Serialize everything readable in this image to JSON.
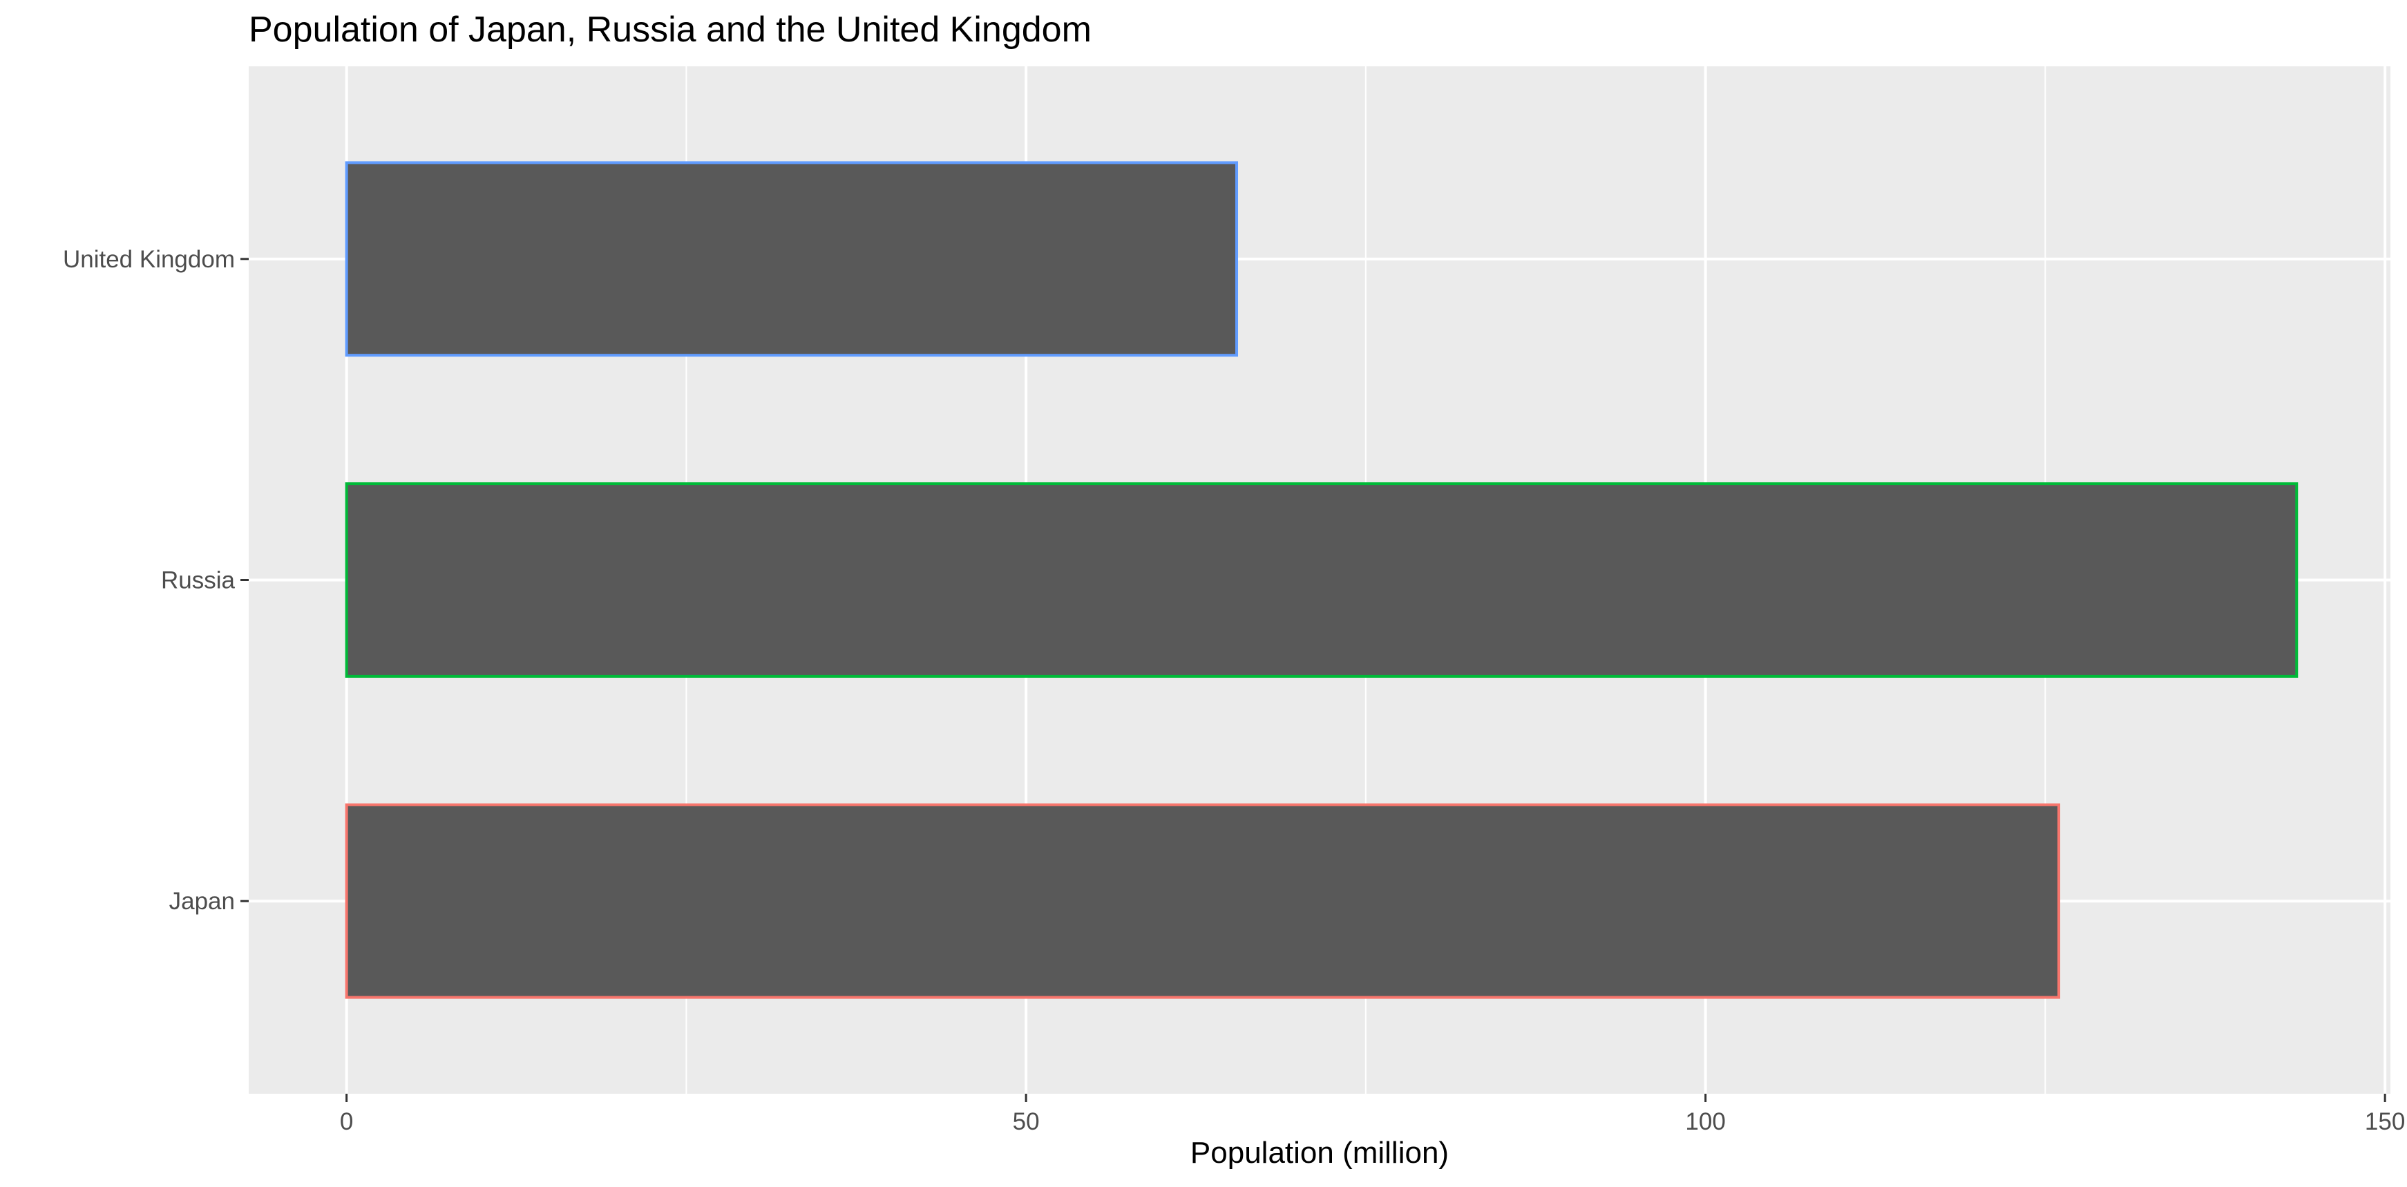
{
  "chart_data": {
    "type": "bar",
    "orientation": "horizontal",
    "title": "Population of Japan, Russia and the United Kingdom",
    "xlabel": "Population (million)",
    "ylabel": "",
    "categories": [
      "Japan",
      "Russia",
      "United Kingdom"
    ],
    "values": [
      126,
      143.5,
      65.5
    ],
    "bar_outline_colors": [
      "#F8766D",
      "#00BA38",
      "#619CFF"
    ],
    "bar_fill_color": "#595959",
    "panel_background": "#EBEBEB",
    "grid_color": "#FFFFFF",
    "xlim": [
      -7.2,
      150.4
    ],
    "x_ticks": [
      0,
      50,
      100,
      150
    ],
    "x_tick_labels": [
      "0",
      "50",
      "100",
      "150"
    ],
    "grid": true,
    "legend": "none"
  }
}
